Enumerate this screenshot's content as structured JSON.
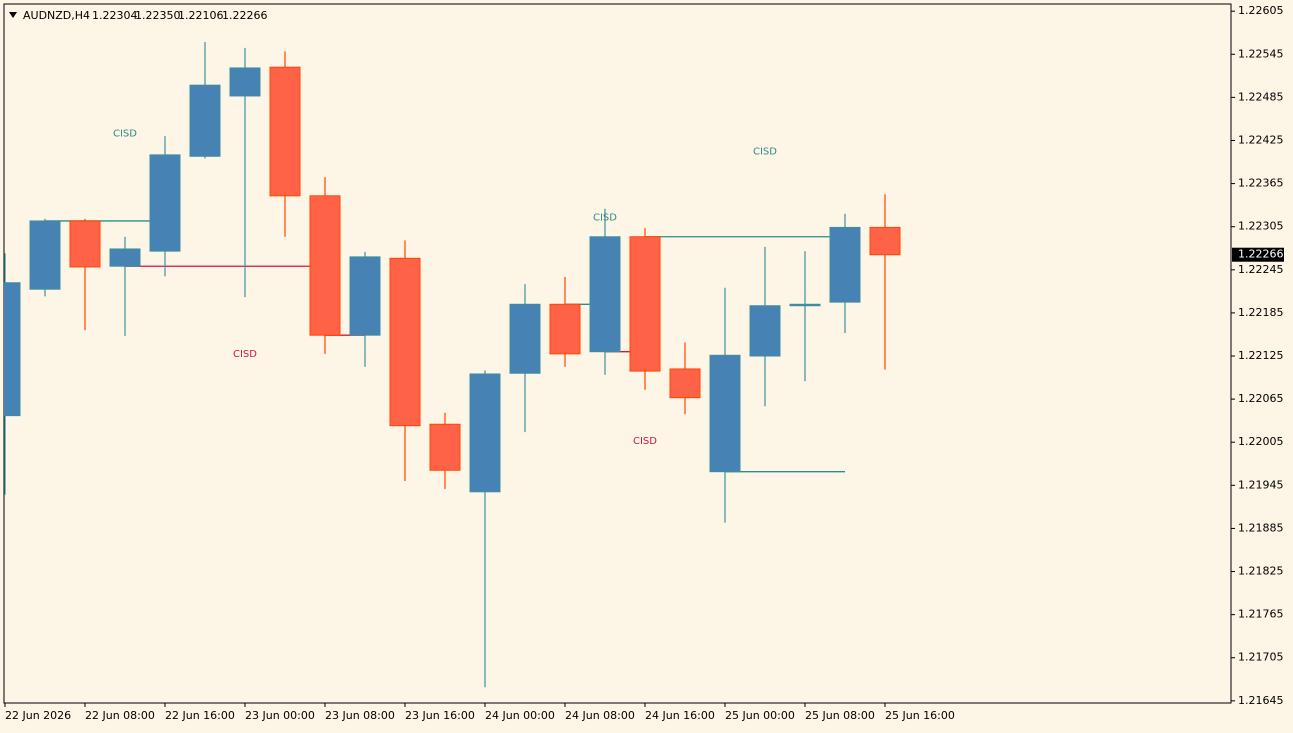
{
  "chart_data": {
    "type": "candlestick",
    "symbol": "AUDNZD,H4",
    "header_prices": [
      "1.22304",
      "1.22350",
      "1.22106",
      "1.22266"
    ],
    "categories": [
      "22 Jun 2026",
      null,
      "22 Jun 08:00",
      null,
      "22 Jun 16:00",
      null,
      "23 Jun 00:00",
      null,
      "23 Jun 08:00",
      null,
      "23 Jun 16:00",
      null,
      "24 Jun 00:00",
      null,
      "24 Jun 08:00",
      null,
      "24 Jun 16:00",
      null,
      "25 Jun 00:00",
      null,
      "25 Jun 08:00",
      null,
      "25 Jun 16:00"
    ],
    "open": [
      1.22042,
      1.22218,
      1.22313,
      1.2225,
      1.22271,
      1.22403,
      1.22487,
      1.22527,
      1.22348,
      1.22154,
      1.22261,
      1.2203,
      1.21936,
      1.22101,
      1.22197,
      1.22131,
      1.22291,
      1.22107,
      1.21964,
      1.22125,
      1.22195,
      1.222,
      1.22304
    ],
    "high": [
      1.22268,
      1.22316,
      1.22316,
      1.22291,
      1.22431,
      1.22562,
      1.22554,
      1.22549,
      1.22374,
      1.2227,
      1.22286,
      1.22046,
      1.22105,
      1.22225,
      1.22235,
      1.2233,
      1.22303,
      1.22144,
      1.2222,
      1.22277,
      1.22271,
      1.22323,
      1.2235
    ],
    "low": [
      1.21932,
      1.22208,
      1.22161,
      1.22153,
      1.22236,
      1.224,
      1.22207,
      1.22291,
      1.22128,
      1.2211,
      1.21951,
      1.2194,
      1.21664,
      1.22019,
      1.2211,
      1.22099,
      1.22078,
      1.22044,
      1.21893,
      1.22055,
      1.2209,
      1.22157,
      1.22106
    ],
    "close": [
      1.22227,
      1.22313,
      1.22249,
      1.22274,
      1.22405,
      1.22502,
      1.22526,
      1.22348,
      1.22154,
      1.22263,
      1.22028,
      1.21966,
      1.221,
      1.22197,
      1.22128,
      1.22291,
      1.22104,
      1.22067,
      1.22126,
      1.22195,
      1.22197,
      1.22304,
      1.22266
    ],
    "up_color": "#4682b4",
    "down_color": "#ff6347",
    "levels": [
      {
        "value": 1.22313,
        "start": 1,
        "end": 4,
        "color": "#2e8b8b"
      },
      {
        "value": 1.2225,
        "start": 3,
        "end": 8,
        "color": "#dc143c"
      },
      {
        "value": 1.22154,
        "start": 8,
        "end": 9,
        "color": "#dc143c"
      },
      {
        "value": 1.22197,
        "start": 14,
        "end": 15,
        "color": "#2e8b8b"
      },
      {
        "value": 1.22131,
        "start": 15,
        "end": 16,
        "color": "#dc143c"
      },
      {
        "value": 1.22291,
        "start": 16,
        "end": 21,
        "color": "#2e8b8b"
      },
      {
        "value": 1.21964,
        "start": 18,
        "end": 21,
        "color": "#2e8b8b"
      }
    ],
    "annotations": [
      {
        "text": "CISD",
        "index": 3,
        "value": 1.22435,
        "color": "#2e8b8b"
      },
      {
        "text": "CISD",
        "index": 6,
        "value": 1.22128,
        "color": "#dc143c"
      },
      {
        "text": "CISD",
        "index": 15,
        "value": 1.22318,
        "color": "#2e8b8b"
      },
      {
        "text": "CISD",
        "index": 19,
        "value": 1.2241,
        "color": "#2e8b8b"
      },
      {
        "text": "CISD",
        "index": 16,
        "value": 1.22007,
        "color": "#dc143c"
      }
    ],
    "ylim": [
      1.21642,
      1.22615
    ],
    "yticks": [
      1.22605,
      1.22545,
      1.22485,
      1.22425,
      1.22365,
      1.22305,
      1.22245,
      1.22185,
      1.22125,
      1.22065,
      1.22005,
      1.21945,
      1.21885,
      1.21825,
      1.21765,
      1.21705,
      1.21645
    ]
  }
}
